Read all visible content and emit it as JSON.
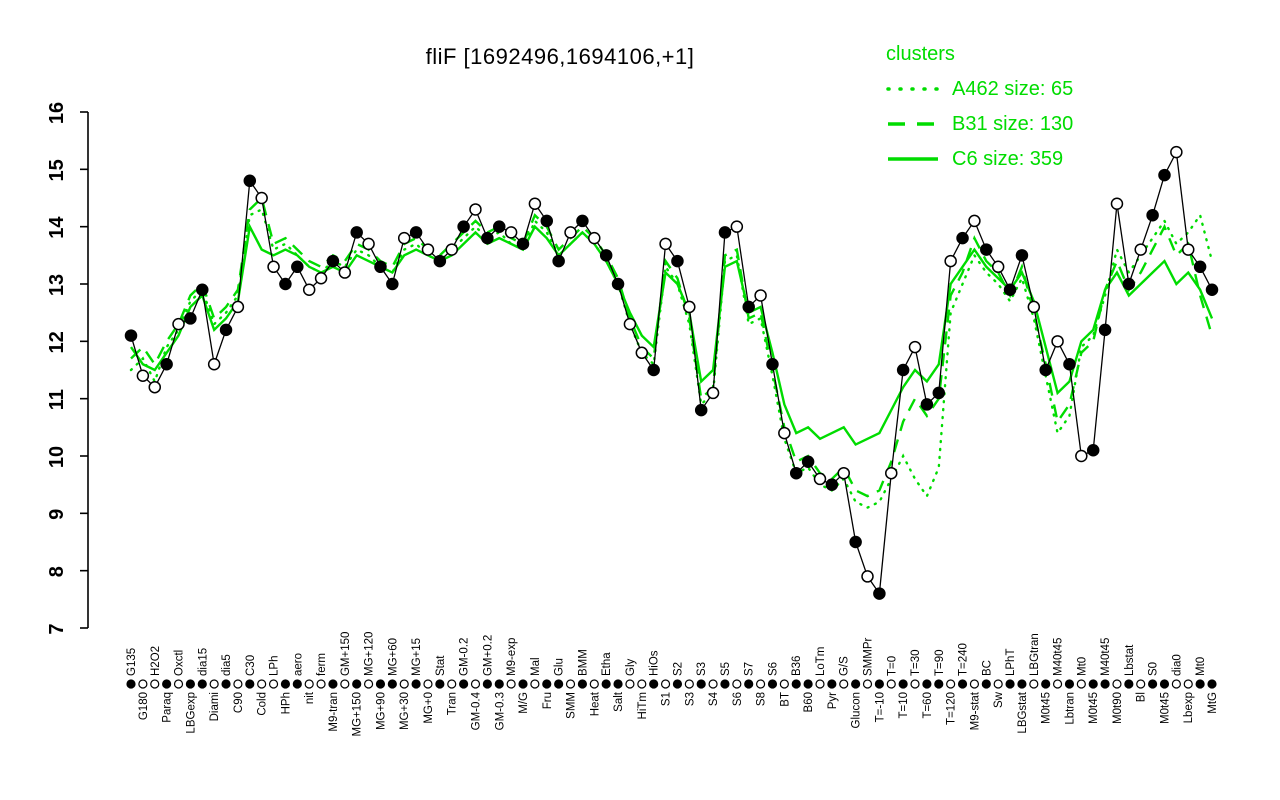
{
  "title": "fliF [1692496,1694106,+1]",
  "legend": {
    "title": "clusters",
    "items": [
      {
        "label": "A462 size: 65",
        "name": "A462",
        "size": 65,
        "style": "dotted"
      },
      {
        "label": "B31 size: 130",
        "name": "B31",
        "size": 130,
        "style": "dashed"
      },
      {
        "label": "C6 size: 359",
        "name": "C6",
        "size": 359,
        "style": "solid"
      }
    ]
  },
  "colors": {
    "cluster": "#00dc00",
    "expression": "#000000",
    "background": "#ffffff"
  },
  "chart_data": {
    "type": "line",
    "title": "fliF [1692496,1694106,+1]",
    "xlabel": "",
    "ylabel": "",
    "ylim": [
      7,
      16
    ],
    "y_ticks": [
      7,
      8,
      9,
      10,
      11,
      12,
      13,
      14,
      15,
      16
    ],
    "grid": false,
    "legend_position": "top-right",
    "categories": [
      "G135",
      "G180",
      "H2O2",
      "Paraq",
      "Oxctl",
      "LBGexp",
      "dia15",
      "Diami",
      "dia5",
      "C90",
      "C30",
      "Cold",
      "LPh",
      "HPh",
      "aero",
      "nit",
      "ferm",
      "M9-tran",
      "GM+150",
      "MG+150",
      "MG+120",
      "MG+90",
      "MG+60",
      "MG+30",
      "MG+15",
      "MG+0",
      "Stat",
      "Tran",
      "GM-0.2",
      "GM-0.4",
      "GM+0.2",
      "GM-0.3",
      "M9-exp",
      "M/G",
      "Mal",
      "Fru",
      "Glu",
      "SMM",
      "BMM",
      "Heat",
      "Etha",
      "Salt",
      "Gly",
      "HiTm",
      "HiOs",
      "S1",
      "S2",
      "S3",
      "S3",
      "S4",
      "S5",
      "S6",
      "S7",
      "S8",
      "S6",
      "BT",
      "B36",
      "B60",
      "LoTm",
      "Pyr",
      "G/S",
      "Glucon",
      "SMMPr",
      "T=-10",
      "T=0",
      "T=10",
      "T=30",
      "T=60",
      "T=90",
      "T=120",
      "T=240",
      "M9-stat",
      "BC",
      "Sw",
      "LPhT",
      "LBGstat",
      "LBGtran",
      "M0t45",
      "M40t45",
      "Lbtran",
      "Mt0",
      "M0t45",
      "M40t45",
      "M0t90",
      "Lbstat",
      "Bl",
      "S0",
      "M0t45",
      "dia0",
      "Lbexp",
      "Mt0",
      "MtG"
    ],
    "values": [
      12.1,
      11.4,
      11.2,
      11.6,
      12.3,
      12.4,
      12.9,
      11.6,
      12.2,
      12.6,
      14.8,
      14.5,
      13.3,
      13.0,
      13.3,
      12.9,
      13.1,
      13.4,
      13.2,
      13.9,
      13.7,
      13.3,
      13.0,
      13.8,
      13.9,
      13.6,
      13.4,
      13.6,
      14.0,
      14.3,
      13.8,
      14.0,
      13.9,
      13.7,
      14.4,
      14.1,
      13.4,
      13.9,
      14.1,
      13.8,
      13.5,
      13.0,
      12.3,
      11.8,
      11.5,
      13.7,
      13.4,
      12.6,
      10.8,
      11.1,
      13.9,
      14.0,
      12.6,
      12.8,
      11.6,
      10.4,
      9.7,
      9.9,
      9.6,
      9.5,
      9.7,
      8.5,
      7.9,
      7.6,
      9.7,
      11.5,
      11.9,
      10.9,
      11.1,
      13.4,
      13.8,
      14.1,
      13.6,
      13.3,
      12.9,
      13.5,
      12.6,
      11.5,
      12.0,
      11.6,
      10.0,
      10.1,
      12.2,
      14.4,
      13.0,
      13.6,
      14.2,
      14.9,
      15.3,
      13.6,
      13.3,
      12.9
    ],
    "point_fills": [
      1,
      0,
      0,
      1,
      0,
      1,
      1,
      0,
      1,
      0,
      1,
      0,
      0,
      1,
      1,
      0,
      0,
      1,
      0,
      1,
      0,
      1,
      1,
      0,
      1,
      0,
      1,
      0,
      1,
      0,
      1,
      1,
      0,
      1,
      0,
      1,
      1,
      0,
      1,
      0,
      1,
      1,
      0,
      0,
      1,
      0,
      1,
      0,
      1,
      0,
      1,
      0,
      1,
      0,
      1,
      0,
      1,
      1,
      0,
      1,
      0,
      1,
      0,
      1,
      0,
      1,
      0,
      1,
      1,
      0,
      1,
      0,
      1,
      0,
      1,
      1,
      0,
      1,
      0,
      1,
      0,
      1,
      1,
      0,
      1,
      0,
      1,
      1,
      0,
      0,
      1,
      1
    ],
    "series": [
      {
        "name": "A462",
        "size": 65,
        "style": "dotted",
        "values": [
          11.5,
          11.7,
          11.3,
          11.9,
          12.2,
          12.7,
          12.9,
          12.3,
          12.5,
          12.8,
          14.2,
          14.3,
          13.6,
          13.7,
          13.5,
          13.3,
          13.2,
          13.4,
          13.3,
          13.6,
          13.5,
          13.3,
          13.2,
          13.6,
          13.7,
          13.5,
          13.4,
          13.6,
          13.8,
          14.0,
          13.8,
          13.9,
          13.7,
          13.6,
          14.1,
          13.9,
          13.5,
          13.7,
          13.9,
          13.7,
          13.4,
          13.0,
          12.3,
          11.8,
          11.6,
          13.3,
          13.0,
          12.3,
          10.9,
          11.1,
          13.4,
          13.5,
          12.3,
          12.4,
          11.4,
          10.3,
          9.7,
          9.8,
          9.5,
          9.4,
          9.6,
          9.2,
          9.1,
          9.2,
          9.6,
          10.0,
          9.6,
          9.3,
          9.8,
          12.5,
          13.0,
          13.5,
          13.2,
          13.0,
          12.7,
          13.1,
          12.4,
          11.4,
          10.4,
          10.7,
          11.9,
          12.1,
          12.8,
          13.6,
          13.2,
          13.5,
          13.8,
          14.1,
          13.7,
          13.9,
          14.2,
          13.4
        ]
      },
      {
        "name": "B31",
        "size": 130,
        "style": "dashed",
        "values": [
          11.7,
          11.9,
          11.6,
          12.0,
          12.3,
          12.8,
          13.0,
          12.4,
          12.6,
          12.9,
          14.3,
          14.5,
          13.7,
          13.8,
          13.6,
          13.4,
          13.3,
          13.5,
          13.4,
          13.7,
          13.6,
          13.4,
          13.3,
          13.7,
          13.8,
          13.6,
          13.5,
          13.7,
          13.9,
          14.1,
          13.9,
          14.0,
          13.8,
          13.7,
          14.2,
          14.0,
          13.6,
          13.8,
          14.0,
          13.8,
          13.5,
          13.1,
          12.4,
          11.9,
          11.7,
          13.4,
          13.1,
          12.4,
          11.0,
          11.2,
          13.5,
          13.6,
          12.4,
          12.5,
          11.5,
          10.5,
          9.9,
          10.0,
          9.7,
          9.6,
          9.8,
          9.4,
          9.3,
          9.4,
          9.9,
          10.6,
          11.0,
          10.7,
          11.0,
          12.8,
          13.2,
          13.8,
          13.4,
          13.2,
          12.8,
          13.3,
          12.5,
          11.6,
          10.6,
          10.9,
          11.8,
          12.0,
          12.9,
          13.4,
          12.9,
          13.2,
          13.6,
          14.0,
          13.5,
          13.7,
          12.8,
          12.1
        ]
      },
      {
        "name": "C6",
        "size": 359,
        "style": "solid",
        "values": [
          11.9,
          11.6,
          11.5,
          11.8,
          12.1,
          12.6,
          12.8,
          12.2,
          12.4,
          12.7,
          14.0,
          13.6,
          13.5,
          13.6,
          13.5,
          13.3,
          13.2,
          13.3,
          13.2,
          13.5,
          13.4,
          13.3,
          13.2,
          13.5,
          13.6,
          13.5,
          13.4,
          13.5,
          13.7,
          13.9,
          13.7,
          13.8,
          13.7,
          13.6,
          14.0,
          13.8,
          13.5,
          13.7,
          13.9,
          13.7,
          13.4,
          13.0,
          12.5,
          12.1,
          11.9,
          13.2,
          13.0,
          12.5,
          11.3,
          11.5,
          13.3,
          13.4,
          12.5,
          12.6,
          11.8,
          10.9,
          10.4,
          10.5,
          10.3,
          10.4,
          10.5,
          10.2,
          10.3,
          10.4,
          10.8,
          11.2,
          11.5,
          11.3,
          11.6,
          13.0,
          13.3,
          13.6,
          13.3,
          13.1,
          12.9,
          13.2,
          12.7,
          11.9,
          11.1,
          11.3,
          12.0,
          12.2,
          12.9,
          13.2,
          12.8,
          13.0,
          13.2,
          13.4,
          13.0,
          13.2,
          12.9,
          12.4
        ]
      }
    ]
  }
}
